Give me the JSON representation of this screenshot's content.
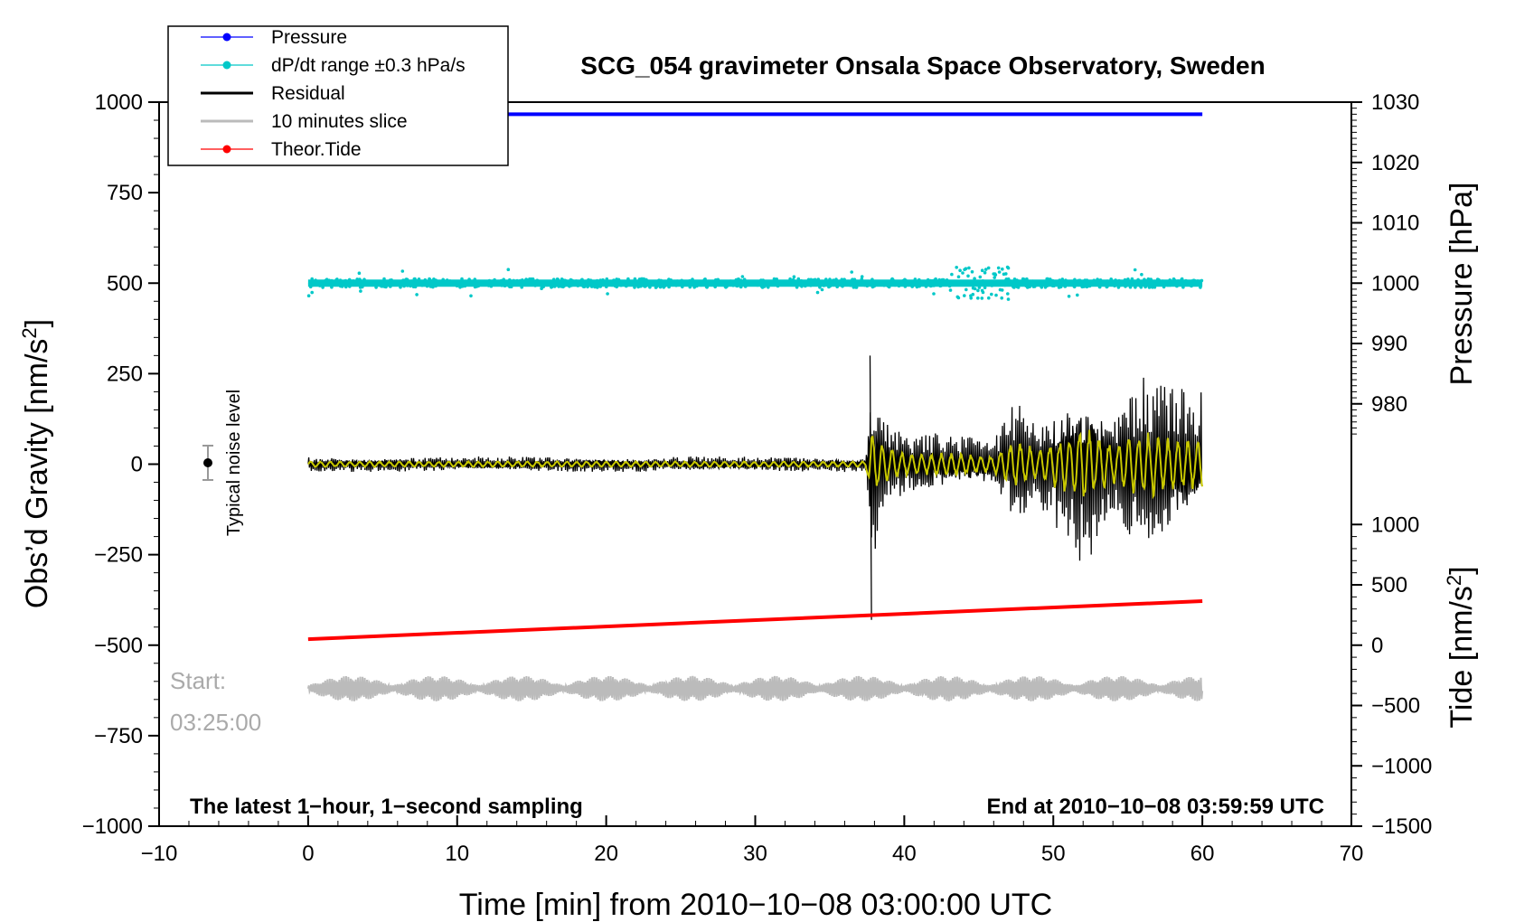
{
  "chart_data": {
    "type": "line",
    "title": "SCG_054 gravimeter Onsala Space Observatory, Sweden",
    "xlabel": "Time [min] from 2010−10−08 03:00:00 UTC",
    "ylabel": "Obs’d Gravity [nm/s²]",
    "ylabel_pressure": "Pressure [hPa]",
    "ylabel_tide": "Tide [nm/s²]",
    "xlim": [
      -10,
      70
    ],
    "ylim": [
      -1000,
      1000
    ],
    "pressure_lim": [
      910,
      1030
    ],
    "tide_lim": [
      -1500,
      4500
    ],
    "x_ticks": [
      {
        "v": -10,
        "label": "−10"
      },
      {
        "v": 0,
        "label": "0"
      },
      {
        "v": 10,
        "label": "10"
      },
      {
        "v": 20,
        "label": "20"
      },
      {
        "v": 30,
        "label": "30"
      },
      {
        "v": 40,
        "label": "40"
      },
      {
        "v": 50,
        "label": "50"
      },
      {
        "v": 60,
        "label": "60"
      },
      {
        "v": 70,
        "label": "70"
      }
    ],
    "y_ticks": [
      {
        "v": 1000,
        "label": "1000"
      },
      {
        "v": 750,
        "label": "750"
      },
      {
        "v": 500,
        "label": "500"
      },
      {
        "v": 250,
        "label": "250"
      },
      {
        "v": 0,
        "label": "0"
      },
      {
        "v": -250,
        "label": "−250"
      },
      {
        "v": -500,
        "label": "−500"
      },
      {
        "v": -750,
        "label": "−750"
      },
      {
        "v": -1000,
        "label": "−1000"
      }
    ],
    "pressure_ticks": [
      {
        "v": 1030,
        "label": "1030"
      },
      {
        "v": 1020,
        "label": "1020"
      },
      {
        "v": 1010,
        "label": "1010"
      },
      {
        "v": 1000,
        "label": "1000"
      },
      {
        "v": 990,
        "label": "990"
      },
      {
        "v": 980,
        "label": "980"
      }
    ],
    "tide_ticks": [
      {
        "v": 1000,
        "label": "1000"
      },
      {
        "v": 500,
        "label": "500"
      },
      {
        "v": 0,
        "label": "0"
      },
      {
        "v": -500,
        "label": "−500"
      },
      {
        "v": -1000,
        "label": "−1000"
      },
      {
        "v": -1500,
        "label": "−1500"
      }
    ],
    "legend": [
      {
        "name": "Pressure",
        "color": "#0000ff",
        "marker": true
      },
      {
        "name": "dP/dt range ±0.3 hPa/s",
        "color": "#00c8c8",
        "marker": true
      },
      {
        "name": "Residual",
        "color": "#000000",
        "marker": false
      },
      {
        "name": "10 minutes slice",
        "color": "#bbbbbb",
        "marker": false
      },
      {
        "name": "Theor.Tide",
        "color": "#ff0000",
        "marker": true
      }
    ],
    "series": [
      {
        "name": "Pressure",
        "axis": "pressure",
        "color": "#0000ff",
        "x_range": [
          0,
          60
        ],
        "level": 1028.0
      },
      {
        "name": "dP/dt range",
        "axis": "gravity",
        "color": "#00c8c8",
        "x_range": [
          0,
          60
        ],
        "center": 500,
        "spread": 12
      },
      {
        "name": "Residual",
        "axis": "gravity",
        "color": "#000000",
        "x_range": [
          0,
          60
        ],
        "envelope_x": [
          0,
          37.4,
          37.8,
          38.5,
          40,
          43,
          46,
          47.5,
          49,
          52,
          54,
          56,
          58,
          60
        ],
        "envelope_amp": [
          22,
          22,
          300,
          160,
          90,
          90,
          70,
          200,
          120,
          300,
          160,
          280,
          220,
          200
        ]
      },
      {
        "name": "Filtered",
        "axis": "gravity",
        "color": "#c8c800",
        "x_range": [
          0,
          60
        ],
        "amp_ratio": 0.35
      },
      {
        "name": "Theor.Tide",
        "axis": "tide",
        "color": "#ff0000",
        "x": [
          0,
          60
        ],
        "y": [
          50,
          365
        ]
      },
      {
        "name": "10 minutes slice",
        "axis": "gravity",
        "color": "#bbbbbb",
        "x_range": [
          0,
          60
        ],
        "center": -620,
        "amp": 35
      }
    ],
    "noise_marker": {
      "x": -7,
      "y": 0,
      "err": 20,
      "label": "Typical noise level"
    },
    "start_label": [
      "Start:",
      "03:25:00"
    ],
    "note_left": "The latest 1−hour, 1−second sampling",
    "note_right": "End at 2010−10−08 03:59:59 UTC"
  }
}
